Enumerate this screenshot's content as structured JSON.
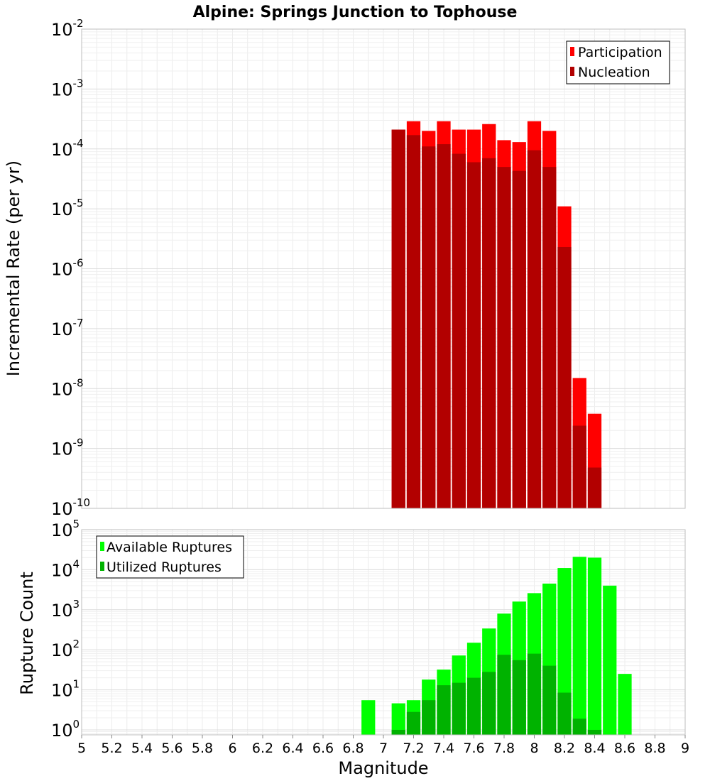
{
  "chart_data": [
    {
      "type": "bar",
      "title": "Alpine: Springs Junction to Tophouse",
      "ylabel": "Incremental Rate (per yr)",
      "xlabel": "",
      "yscale": "log",
      "ylim": [
        1e-10,
        0.01
      ],
      "xlim": [
        5,
        9
      ],
      "y_tick_labels": [
        {
          "value": 1e-10,
          "base": "10",
          "exp": "-10"
        },
        {
          "value": 1e-09,
          "base": "10",
          "exp": "-9"
        },
        {
          "value": 1e-08,
          "base": "10",
          "exp": "-8"
        },
        {
          "value": 1e-07,
          "base": "10",
          "exp": "-7"
        },
        {
          "value": 1e-06,
          "base": "10",
          "exp": "-6"
        },
        {
          "value": 1e-05,
          "base": "10",
          "exp": "-5"
        },
        {
          "value": 0.0001,
          "base": "10",
          "exp": "-4"
        },
        {
          "value": 0.001,
          "base": "10",
          "exp": "-3"
        },
        {
          "value": 0.01,
          "base": "10",
          "exp": "-2"
        }
      ],
      "grid": true,
      "legend_position": "top-right",
      "x": [
        7.1,
        7.2,
        7.3,
        7.4,
        7.5,
        7.6,
        7.7,
        7.8,
        7.9,
        8.0,
        8.1,
        8.2,
        8.3,
        8.4
      ],
      "series": [
        {
          "name": "Participation",
          "color": "#ff0000",
          "values": [
            0.00021,
            0.00029,
            0.0002,
            0.00029,
            0.00021,
            0.00021,
            0.00026,
            0.00014,
            0.00013,
            0.00029,
            0.0002,
            1.1e-05,
            1.5e-08,
            3.8e-09
          ]
        },
        {
          "name": "Nucleation",
          "color": "#b20000",
          "values": [
            0.00021,
            0.00017,
            0.00011,
            0.00012,
            8.3e-05,
            6e-05,
            7e-05,
            5e-05,
            4.3e-05,
            9.5e-05,
            5e-05,
            2.3e-06,
            2.4e-09,
            4.8e-10
          ]
        }
      ]
    },
    {
      "type": "bar",
      "title": "",
      "ylabel": "Rupture Count",
      "xlabel": "Magnitude",
      "yscale": "log",
      "ylim": [
        0.75,
        100000
      ],
      "xlim": [
        5,
        9
      ],
      "y_tick_labels": [
        {
          "value": 1,
          "base": "10",
          "exp": "0"
        },
        {
          "value": 10,
          "base": "10",
          "exp": "1"
        },
        {
          "value": 100,
          "base": "10",
          "exp": "2"
        },
        {
          "value": 1000,
          "base": "10",
          "exp": "3"
        },
        {
          "value": 10000,
          "base": "10",
          "exp": "4"
        },
        {
          "value": 100000,
          "base": "10",
          "exp": "5"
        }
      ],
      "x_tick_labels": [
        "5",
        "5.2",
        "5.4",
        "5.6",
        "5.8",
        "6",
        "6.2",
        "6.4",
        "6.6",
        "6.8",
        "7",
        "7.2",
        "7.4",
        "7.6",
        "7.8",
        "8",
        "8.2",
        "8.4",
        "8.6",
        "8.8",
        "9"
      ],
      "grid": true,
      "legend_position": "top-left",
      "x": [
        6.9,
        7.1,
        7.2,
        7.3,
        7.4,
        7.5,
        7.6,
        7.7,
        7.8,
        7.9,
        8.0,
        8.1,
        8.2,
        8.3,
        8.4,
        8.5,
        8.6
      ],
      "series": [
        {
          "name": "Available Ruptures",
          "color": "#00ff00",
          "values": [
            5.5,
            4.6,
            5.5,
            18,
            32,
            72,
            150,
            340,
            800,
            1600,
            2600,
            4500,
            11000,
            21000,
            20000,
            4000,
            25
          ]
        },
        {
          "name": "Utilized Ruptures",
          "color": "#00b200",
          "values": [
            null,
            1,
            2.8,
            5.5,
            13,
            15,
            20,
            28,
            75,
            55,
            80,
            40,
            8.5,
            1.9,
            1,
            null,
            null
          ]
        }
      ]
    }
  ]
}
